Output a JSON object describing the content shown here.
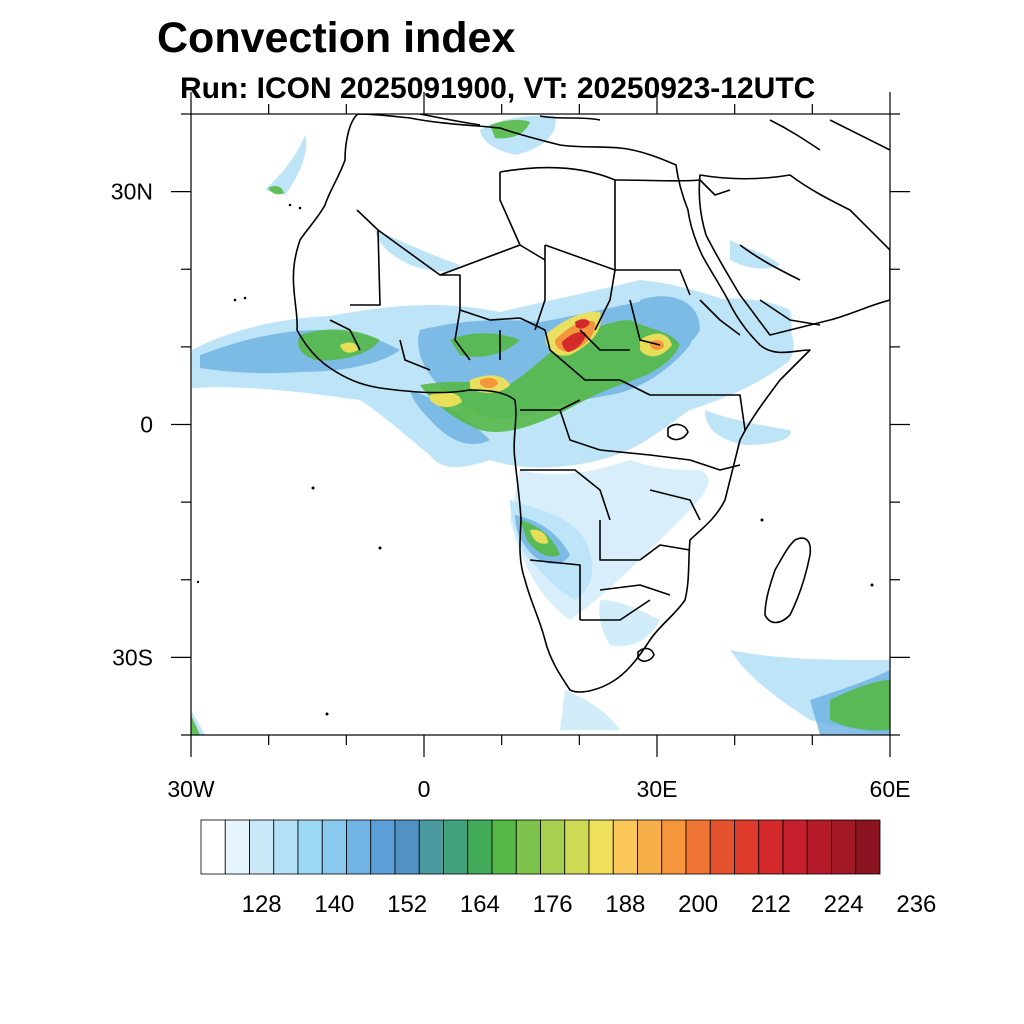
{
  "header": {
    "title": "Convection index",
    "subtitle": "Run: ICON 2025091900,  VT: 20250923-12UTC"
  },
  "map": {
    "region": "Africa",
    "lon_range": [
      -30,
      60
    ],
    "lat_range": [
      -40,
      40
    ],
    "lat_ticks": [
      {
        "lat": 30,
        "label": "30N"
      },
      {
        "lat": 0,
        "label": "0"
      },
      {
        "lat": -30,
        "label": "30S"
      }
    ],
    "lon_ticks": [
      {
        "lon": -30,
        "label": "30W"
      },
      {
        "lon": 0,
        "label": "0"
      },
      {
        "lon": 30,
        "label": "30E"
      },
      {
        "lon": 60,
        "label": "60E"
      }
    ]
  },
  "colorbar": {
    "colors": [
      "#ffffff",
      "#e6f4fc",
      "#cbe8f8",
      "#b3e0f6",
      "#9bd8f4",
      "#8ac9ee",
      "#72b4e4",
      "#5c9fd8",
      "#5291c4",
      "#4a9aa0",
      "#43a27e",
      "#42ac5a",
      "#56b947",
      "#7dc24a",
      "#a8cf50",
      "#cfda54",
      "#eee05a",
      "#fac95a",
      "#f7b049",
      "#f5953c",
      "#f07434",
      "#e5532e",
      "#dd3a2c",
      "#d42a2c",
      "#c61e2c",
      "#b41a2a",
      "#a11826",
      "#8c1420"
    ],
    "labels": [
      "128",
      "140",
      "152",
      "164",
      "176",
      "188",
      "200",
      "212",
      "224",
      "236"
    ]
  }
}
